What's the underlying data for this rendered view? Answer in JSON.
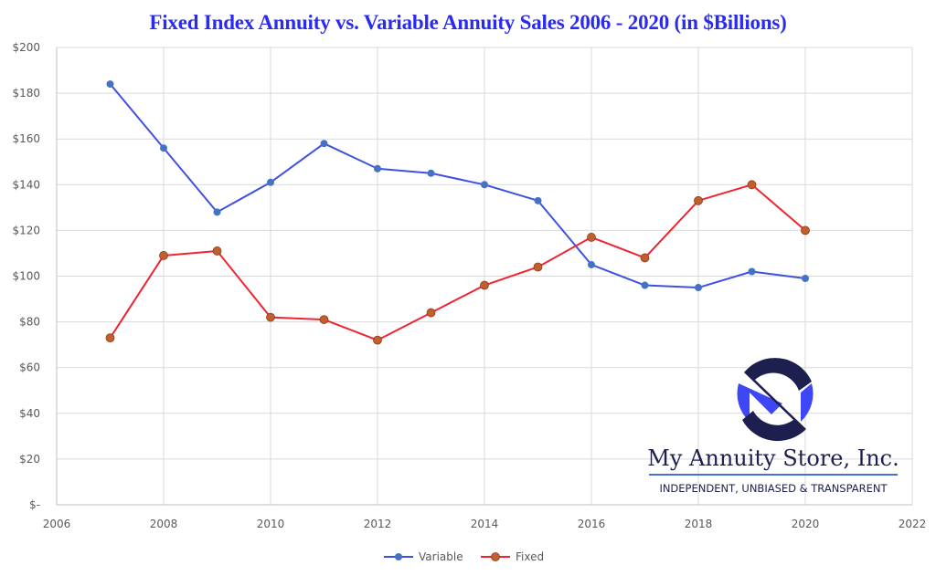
{
  "chart_data": {
    "type": "line",
    "title": "Fixed Index Annuity vs. Variable Annuity Sales 2006 - 2020 (in $Billions)",
    "xlabel": "",
    "ylabel": "",
    "x": [
      2007,
      2008,
      2009,
      2010,
      2011,
      2012,
      2013,
      2014,
      2015,
      2016,
      2017,
      2018,
      2019,
      2020
    ],
    "series": [
      {
        "name": "Variable",
        "color": "#3f51e0",
        "marker_color": "#4472c4",
        "values": [
          184,
          156,
          128,
          141,
          158,
          147,
          145,
          140,
          133,
          105,
          96,
          95,
          102,
          99
        ]
      },
      {
        "name": "Fixed",
        "color": "#f0242f",
        "marker_color": "#c0602f",
        "values": [
          73,
          109,
          111,
          82,
          81,
          72,
          84,
          96,
          104,
          117,
          108,
          133,
          140,
          120
        ]
      }
    ],
    "xlim": [
      2006,
      2022
    ],
    "ylim": [
      0,
      200
    ],
    "xticks": [
      "2006",
      "2008",
      "2010",
      "2012",
      "2014",
      "2016",
      "2018",
      "2020",
      "2022"
    ],
    "yticks": [
      "$-",
      "$20",
      "$40",
      "$60",
      "$80",
      "$100",
      "$120",
      "$140",
      "$160",
      "$180",
      "$200"
    ],
    "grid": true,
    "legend_position": "bottom"
  },
  "watermark": {
    "company": "My Annuity Store, Inc.",
    "tagline": "INDEPENDENT, UNBIASED & TRANSPARENT",
    "logo_icon": "ms-monogram-icon",
    "colors": {
      "navy": "#1d1f4f",
      "blue": "#3d47f5",
      "rule": "#4a6fd8"
    }
  }
}
